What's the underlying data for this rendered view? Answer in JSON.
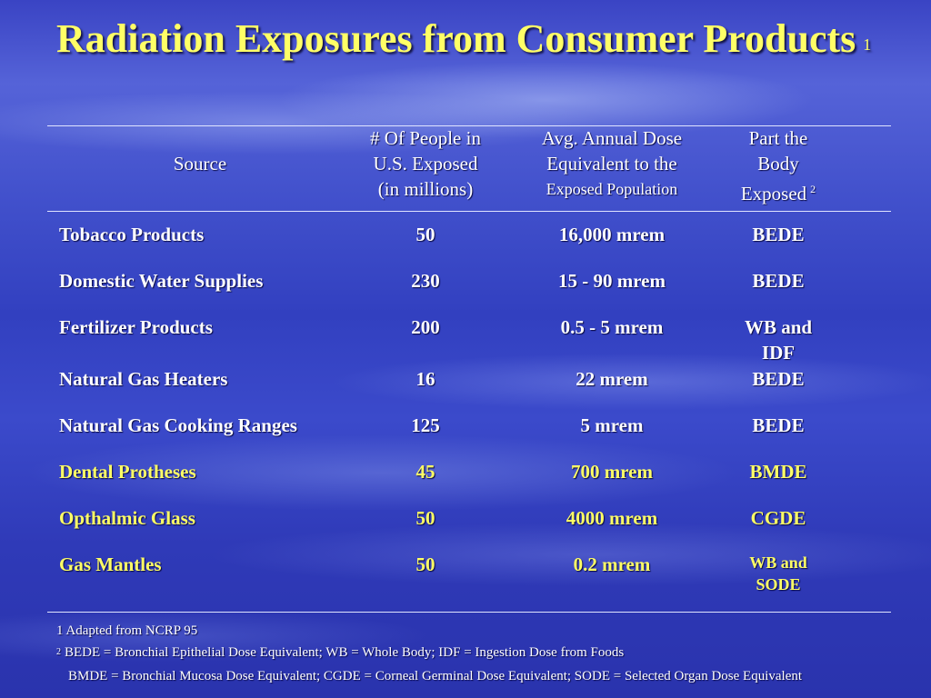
{
  "slide": {
    "title": "Radiation Exposures from Consumer Products",
    "title_superscript": "1"
  },
  "table": {
    "headers": {
      "source": "Source",
      "people_line1": "# Of People in",
      "people_line2": "U.S. Exposed",
      "people_line3": "(in millions)",
      "dose_line1": "Avg. Annual Dose",
      "dose_line2": "Equivalent to the",
      "dose_line3": "Exposed Population",
      "part_line1": "Part the",
      "part_line2": "Body",
      "part_line3": "Exposed",
      "part_superscript": "2"
    },
    "rows": [
      {
        "source": "Tobacco Products",
        "people": "50",
        "dose": "16,000 mrem",
        "part": "BEDE",
        "part2": ""
      },
      {
        "source": "Domestic Water Supplies",
        "people": "230",
        "dose": "15 - 90 mrem",
        "part": "BEDE",
        "part2": ""
      },
      {
        "source": "Fertilizer Products",
        "people": "200",
        "dose": "0.5 - 5 mrem",
        "part": "WB and",
        "part2": "IDF"
      },
      {
        "source": "Natural Gas Heaters",
        "people": "16",
        "dose": "22 mrem",
        "part": "BEDE",
        "part2": ""
      },
      {
        "source": "Natural Gas Cooking Ranges",
        "people": "125",
        "dose": "5 mrem",
        "part": "BEDE",
        "part2": ""
      },
      {
        "source": "Dental Protheses",
        "people": "45",
        "dose": "700 mrem",
        "part": "BMDE",
        "part2": ""
      },
      {
        "source": "Opthalmic Glass",
        "people": "50",
        "dose": "4000 mrem",
        "part": "CGDE",
        "part2": ""
      },
      {
        "source": "Gas Mantles",
        "people": "50",
        "dose": "0.2 mrem",
        "part": "WB and",
        "part2": "SODE"
      }
    ]
  },
  "footnotes": {
    "note1": "1 Adapted from NCRP 95",
    "note2_marker": "2",
    "note2_line1": "BEDE = Bronchial Epithelial Dose Equivalent; WB = Whole Body; IDF = Ingestion Dose from Foods",
    "note2_line2": "BMDE = Bronchial Mucosa Dose Equivalent; CGDE = Corneal Germinal Dose Equivalent;  SODE = Selected Organ Dose Equivalent"
  },
  "colors": {
    "title": "#ffff66",
    "background": "#3a44c4",
    "text": "#ffffff",
    "rule": "#e0e4ff"
  }
}
